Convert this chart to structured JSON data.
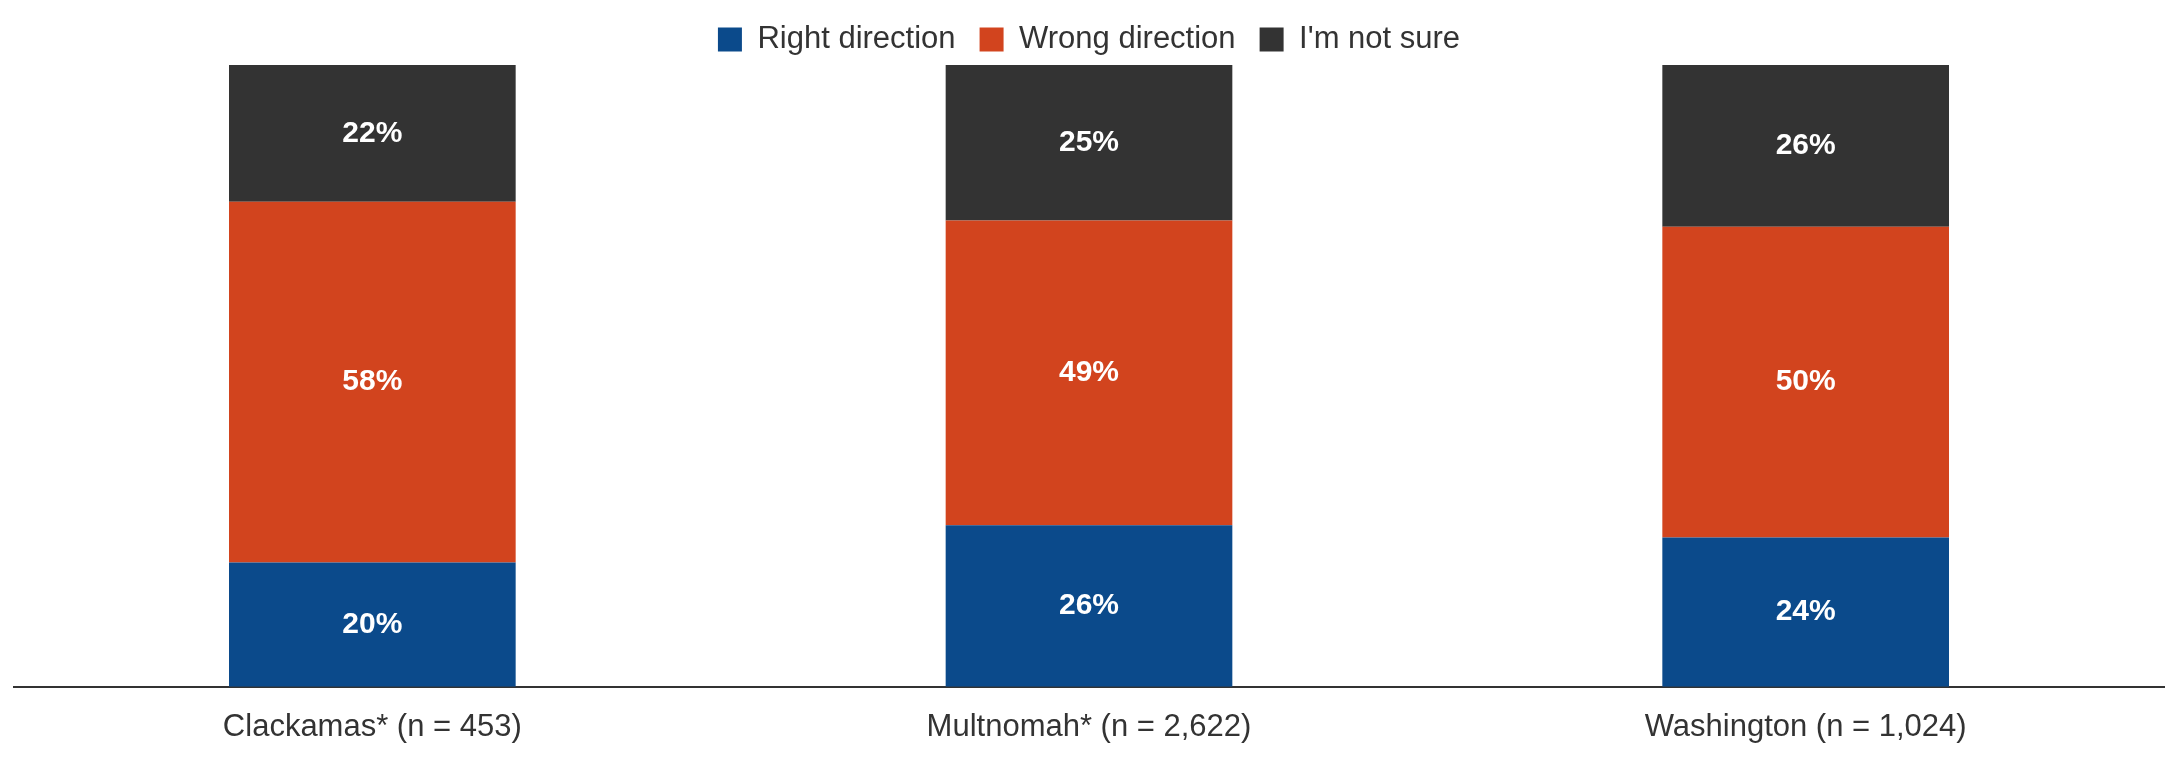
{
  "chart_data": {
    "type": "bar",
    "stacked": true,
    "categories": [
      "Clackamas* (n = 453)",
      "Multnomah* (n = 2,622)",
      "Washington (n = 1,024)"
    ],
    "series": [
      {
        "name": "Right direction",
        "color": "#0b4a8b",
        "values": [
          20,
          26,
          24
        ],
        "value_labels": [
          "20%",
          "26%",
          "24%"
        ]
      },
      {
        "name": "Wrong direction",
        "color": "#d2441e",
        "values": [
          58,
          49,
          50
        ],
        "value_labels": [
          "58%",
          "49%",
          "50%"
        ]
      },
      {
        "name": "I'm not sure",
        "color": "#333333",
        "values": [
          22,
          25,
          26
        ],
        "value_labels": [
          "22%",
          "25%",
          "26%"
        ]
      }
    ],
    "ylim": [
      0,
      100
    ],
    "legend": "top",
    "tick_labels": "x",
    "grid": false
  }
}
